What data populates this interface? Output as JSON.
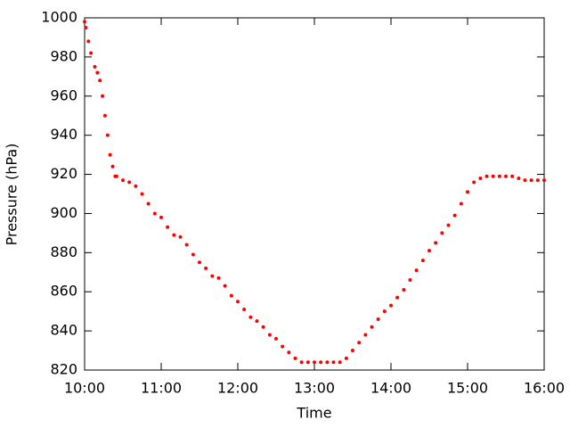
{
  "chart_data": {
    "type": "scatter",
    "x_label": "Time",
    "y_label": "Pressure (hPa)",
    "color": "#ff0000",
    "x": [
      10,
      10.017,
      10.05,
      10.083,
      10.133,
      10.167,
      10.2,
      10.233,
      10.267,
      10.3,
      10.333,
      10.367,
      10.4,
      10.417,
      10.5,
      10.583,
      10.667,
      10.75,
      10.833,
      10.917,
      11,
      11.083,
      11.167,
      11.25,
      11.333,
      11.417,
      11.5,
      11.583,
      11.667,
      11.75,
      11.833,
      11.917,
      12,
      12.083,
      12.167,
      12.25,
      12.333,
      12.417,
      12.5,
      12.583,
      12.667,
      12.75,
      12.833,
      12.917,
      13,
      13.083,
      13.167,
      13.25,
      13.333,
      13.417,
      13.5,
      13.583,
      13.667,
      13.75,
      13.833,
      13.917,
      14,
      14.083,
      14.167,
      14.25,
      14.333,
      14.417,
      14.5,
      14.583,
      14.667,
      14.75,
      14.833,
      14.917,
      15,
      15.083,
      15.167,
      15.25,
      15.333,
      15.417,
      15.5,
      15.583,
      15.667,
      15.75,
      15.833,
      15.917,
      16
    ],
    "values": [
      998,
      995,
      988,
      982,
      975,
      972,
      968,
      960,
      950,
      940,
      930,
      924,
      919,
      919,
      917,
      916,
      914,
      910,
      905,
      900,
      898,
      893,
      889,
      888,
      884,
      879,
      875,
      872,
      868,
      867,
      863,
      858,
      855,
      851,
      847,
      845,
      842,
      838,
      836,
      832,
      829,
      826,
      824,
      824,
      824,
      824,
      824,
      824,
      824,
      826,
      830,
      834,
      838,
      842,
      846,
      850,
      853,
      857,
      861,
      866,
      871,
      876,
      881,
      885,
      890,
      894,
      899,
      905,
      911,
      916,
      918,
      919,
      919,
      919,
      919,
      919,
      918,
      917,
      917,
      917,
      917
    ],
    "xlim": [
      10,
      16
    ],
    "xticks": [
      {
        "value": 10,
        "label": "10:00"
      },
      {
        "value": 11,
        "label": "11:00"
      },
      {
        "value": 12,
        "label": "12:00"
      },
      {
        "value": 13,
        "label": "13:00"
      },
      {
        "value": 14,
        "label": "14:00"
      },
      {
        "value": 15,
        "label": "15:00"
      },
      {
        "value": 16,
        "label": "16:00"
      }
    ],
    "ylim": [
      820,
      1000
    ],
    "yticks": [
      820,
      840,
      860,
      880,
      900,
      920,
      940,
      960,
      980,
      1000
    ]
  }
}
